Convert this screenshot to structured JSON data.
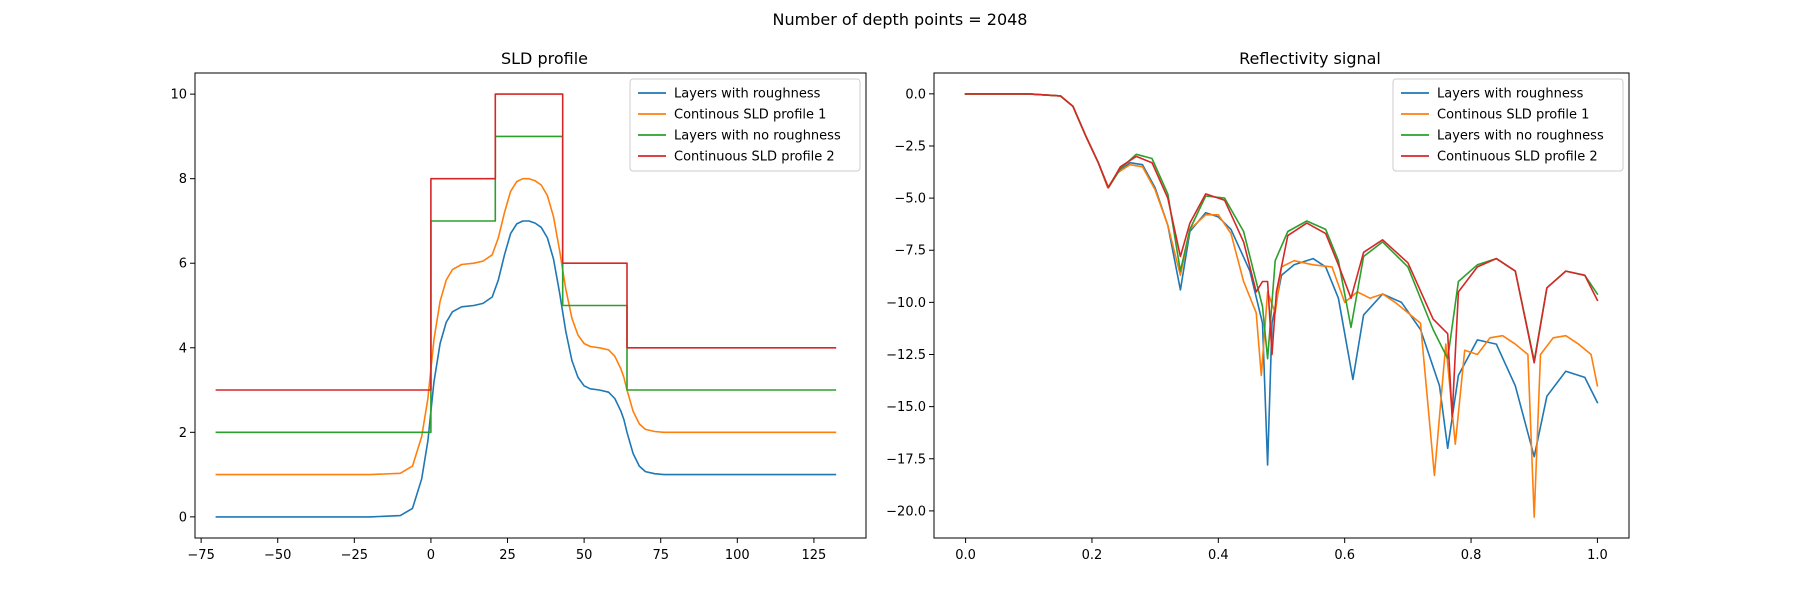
{
  "figure": {
    "suptitle": "Number of depth points = 2048"
  },
  "chart_data": [
    {
      "type": "line",
      "title": "SLD profile",
      "xlabel": "",
      "ylabel": "",
      "xlim": [
        -77,
        142
      ],
      "ylim": [
        -0.5,
        10.5
      ],
      "xticks": [
        -75,
        -50,
        -25,
        0,
        25,
        50,
        75,
        100,
        125
      ],
      "xtick_labels": [
        "−75",
        "−50",
        "−25",
        "0",
        "25",
        "50",
        "75",
        "100",
        "125"
      ],
      "yticks": [
        0,
        2,
        4,
        6,
        8,
        10
      ],
      "ytick_labels": [
        "0",
        "2",
        "4",
        "6",
        "8",
        "10"
      ],
      "grid": false,
      "legend_position": "upper right",
      "series": [
        {
          "name": "Layers with roughness",
          "color": "#1f77b4",
          "x": [
            -70,
            -20,
            -10,
            -6,
            -3,
            -1,
            0,
            1,
            3,
            5,
            7,
            10,
            14,
            17,
            20,
            22,
            24,
            26,
            28,
            30,
            32,
            34,
            36,
            38,
            40,
            42,
            44,
            46,
            48,
            50,
            52,
            55,
            58,
            60,
            62,
            63,
            64,
            66,
            68,
            70,
            73,
            76,
            80,
            90,
            132
          ],
          "y": [
            0,
            0,
            0.03,
            0.2,
            0.9,
            1.8,
            2.5,
            3.2,
            4.1,
            4.6,
            4.85,
            4.97,
            5.0,
            5.05,
            5.2,
            5.6,
            6.2,
            6.7,
            6.93,
            7.0,
            7.0,
            6.95,
            6.85,
            6.6,
            6.1,
            5.3,
            4.4,
            3.7,
            3.3,
            3.1,
            3.03,
            3.0,
            2.95,
            2.8,
            2.5,
            2.3,
            2.0,
            1.5,
            1.2,
            1.07,
            1.02,
            1.0,
            1.0,
            1.0,
            1.0
          ]
        },
        {
          "name": "Continous SLD profile 1",
          "color": "#ff7f0e",
          "x": [
            -70,
            -20,
            -10,
            -6,
            -3,
            -1,
            0,
            1,
            3,
            5,
            7,
            10,
            14,
            17,
            20,
            22,
            24,
            26,
            28,
            30,
            32,
            34,
            36,
            38,
            40,
            42,
            44,
            46,
            48,
            50,
            52,
            55,
            58,
            60,
            62,
            63,
            64,
            66,
            68,
            70,
            73,
            76,
            80,
            90,
            132
          ],
          "y": [
            1,
            1,
            1.03,
            1.2,
            1.9,
            2.8,
            3.5,
            4.2,
            5.1,
            5.6,
            5.85,
            5.97,
            6.0,
            6.05,
            6.2,
            6.6,
            7.2,
            7.7,
            7.93,
            8.0,
            8.0,
            7.95,
            7.85,
            7.6,
            7.1,
            6.3,
            5.4,
            4.7,
            4.3,
            4.1,
            4.03,
            4.0,
            3.95,
            3.8,
            3.5,
            3.3,
            3.0,
            2.5,
            2.2,
            2.07,
            2.02,
            2.0,
            2.0,
            2.0,
            2.0
          ]
        },
        {
          "name": "Layers with no roughness",
          "color": "#2ca02c",
          "x": [
            -70,
            0,
            0,
            21,
            21,
            43,
            43,
            64,
            64,
            132
          ],
          "y": [
            2,
            2,
            7,
            7,
            9,
            9,
            5,
            5,
            3,
            3
          ]
        },
        {
          "name": "Continuous SLD profile 2",
          "color": "#d62728",
          "x": [
            -70,
            0,
            0,
            21,
            21,
            43,
            43,
            64,
            64,
            132
          ],
          "y": [
            3,
            3,
            8,
            8,
            10,
            10,
            6,
            6,
            4,
            4
          ]
        }
      ]
    },
    {
      "type": "line",
      "title": "Reflectivity signal",
      "xlabel": "",
      "ylabel": "",
      "xlim": [
        -0.05,
        1.05
      ],
      "ylim": [
        -21.3,
        1.0
      ],
      "xticks": [
        0,
        0.2,
        0.4,
        0.6,
        0.8,
        1.0
      ],
      "xtick_labels": [
        "0.0",
        "0.2",
        "0.4",
        "0.6",
        "0.8",
        "1.0"
      ],
      "yticks": [
        0,
        -2.5,
        -5,
        -7.5,
        -10,
        -12.5,
        -15,
        -17.5,
        -20
      ],
      "ytick_labels": [
        "0.0",
        "−2.5",
        "−5.0",
        "−7.5",
        "−10.0",
        "−12.5",
        "−15.0",
        "−17.5",
        "−20.0"
      ],
      "grid": false,
      "legend_position": "upper right",
      "series": [
        {
          "name": "Layers with roughness",
          "color": "#1f77b4",
          "x": [
            0,
            0.1,
            0.15,
            0.17,
            0.19,
            0.21,
            0.225,
            0.24,
            0.26,
            0.28,
            0.3,
            0.32,
            0.34,
            0.355,
            0.38,
            0.4,
            0.42,
            0.45,
            0.47,
            0.478,
            0.485,
            0.5,
            0.52,
            0.55,
            0.57,
            0.59,
            0.613,
            0.63,
            0.66,
            0.69,
            0.72,
            0.75,
            0.763,
            0.78,
            0.81,
            0.84,
            0.87,
            0.9,
            0.92,
            0.95,
            0.98,
            1.0
          ],
          "y": [
            0,
            0,
            -0.1,
            -0.6,
            -2.0,
            -3.3,
            -4.5,
            -3.8,
            -3.3,
            -3.4,
            -4.5,
            -6.3,
            -9.4,
            -6.6,
            -5.7,
            -5.9,
            -6.5,
            -8.5,
            -11.0,
            -17.8,
            -11.0,
            -8.7,
            -8.2,
            -7.9,
            -8.3,
            -9.8,
            -13.7,
            -10.6,
            -9.6,
            -10.0,
            -11.3,
            -14.0,
            -17.0,
            -13.5,
            -11.8,
            -12.0,
            -14.0,
            -17.4,
            -14.5,
            -13.3,
            -13.6,
            -14.8
          ]
        },
        {
          "name": "Continous SLD profile 1",
          "color": "#ff7f0e",
          "x": [
            0,
            0.1,
            0.15,
            0.17,
            0.19,
            0.21,
            0.225,
            0.24,
            0.26,
            0.28,
            0.3,
            0.32,
            0.34,
            0.355,
            0.38,
            0.4,
            0.42,
            0.44,
            0.46,
            0.468,
            0.478,
            0.49,
            0.5,
            0.52,
            0.55,
            0.58,
            0.6,
            0.62,
            0.64,
            0.66,
            0.68,
            0.7,
            0.72,
            0.742,
            0.76,
            0.775,
            0.79,
            0.81,
            0.83,
            0.85,
            0.87,
            0.89,
            0.9,
            0.91,
            0.93,
            0.95,
            0.97,
            0.99,
            1.0
          ],
          "y": [
            0,
            0,
            -0.1,
            -0.6,
            -2.0,
            -3.3,
            -4.5,
            -3.8,
            -3.4,
            -3.5,
            -4.6,
            -6.3,
            -8.7,
            -6.5,
            -5.8,
            -5.8,
            -6.7,
            -9.0,
            -10.5,
            -13.5,
            -9.5,
            -10.5,
            -8.3,
            -8.0,
            -8.2,
            -8.3,
            -10.0,
            -9.5,
            -9.8,
            -9.6,
            -10.0,
            -10.5,
            -11.0,
            -18.3,
            -12.0,
            -16.8,
            -12.3,
            -12.5,
            -11.7,
            -11.6,
            -12.0,
            -12.5,
            -20.3,
            -12.5,
            -11.7,
            -11.6,
            -12.0,
            -12.5,
            -14.0
          ]
        },
        {
          "name": "Layers with no roughness",
          "color": "#2ca02c",
          "x": [
            0,
            0.1,
            0.15,
            0.17,
            0.19,
            0.21,
            0.226,
            0.245,
            0.27,
            0.295,
            0.32,
            0.34,
            0.355,
            0.38,
            0.41,
            0.44,
            0.47,
            0.478,
            0.49,
            0.51,
            0.54,
            0.57,
            0.59,
            0.61,
            0.63,
            0.66,
            0.7,
            0.74,
            0.763,
            0.78,
            0.81,
            0.84,
            0.87,
            0.9,
            0.92,
            0.95,
            0.98,
            1.0
          ],
          "y": [
            0,
            0,
            -0.1,
            -0.6,
            -2.0,
            -3.3,
            -4.5,
            -3.6,
            -2.9,
            -3.1,
            -4.8,
            -8.5,
            -6.5,
            -4.9,
            -5.0,
            -6.6,
            -10.2,
            -12.7,
            -8.0,
            -6.6,
            -6.1,
            -6.5,
            -8.0,
            -11.2,
            -7.8,
            -7.1,
            -8.3,
            -11.3,
            -12.7,
            -9.0,
            -8.2,
            -7.9,
            -8.5,
            -12.8,
            -9.3,
            -8.5,
            -8.7,
            -9.6
          ]
        },
        {
          "name": "Continuous SLD profile 2",
          "color": "#d62728",
          "x": [
            0,
            0.1,
            0.15,
            0.17,
            0.19,
            0.21,
            0.226,
            0.245,
            0.27,
            0.295,
            0.32,
            0.34,
            0.355,
            0.38,
            0.41,
            0.44,
            0.46,
            0.47,
            0.478,
            0.485,
            0.492,
            0.51,
            0.54,
            0.57,
            0.59,
            0.61,
            0.63,
            0.66,
            0.7,
            0.74,
            0.763,
            0.77,
            0.78,
            0.81,
            0.84,
            0.87,
            0.9,
            0.92,
            0.95,
            0.98,
            1.0
          ],
          "y": [
            0,
            0,
            -0.1,
            -0.6,
            -2.0,
            -3.3,
            -4.5,
            -3.5,
            -3.0,
            -3.3,
            -5.0,
            -7.8,
            -6.2,
            -4.8,
            -5.1,
            -7.1,
            -9.5,
            -9.0,
            -9.0,
            -12.5,
            -9.5,
            -6.8,
            -6.2,
            -6.7,
            -8.2,
            -9.8,
            -7.6,
            -7.0,
            -8.1,
            -10.8,
            -11.5,
            -15.5,
            -9.5,
            -8.3,
            -7.9,
            -8.5,
            -12.9,
            -9.3,
            -8.5,
            -8.7,
            -9.9
          ]
        }
      ]
    }
  ]
}
